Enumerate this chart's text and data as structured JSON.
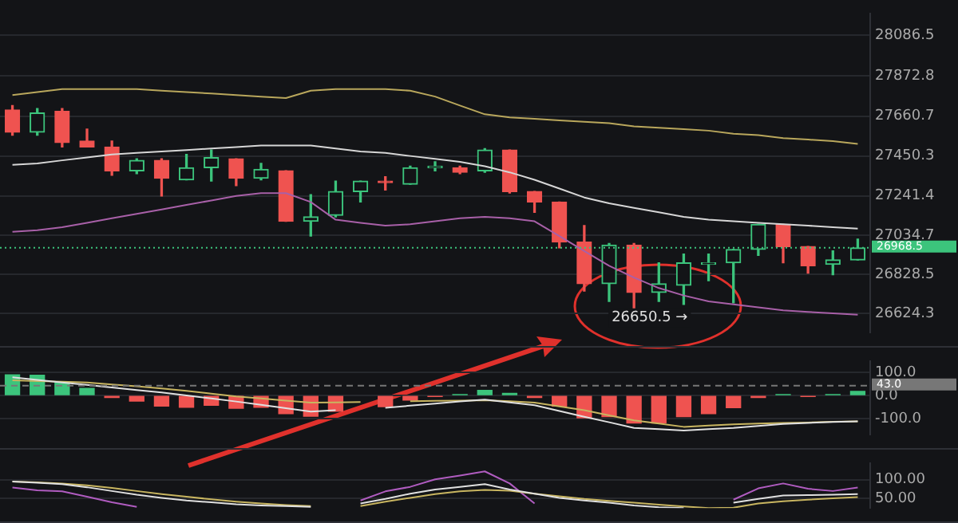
{
  "chart_data": [
    {
      "type": "candlestick",
      "categories": [
        null,
        null,
        null,
        null,
        null,
        null,
        null,
        null,
        null,
        null,
        null,
        null,
        null,
        null,
        null,
        null,
        null,
        null,
        null,
        null,
        null,
        null,
        null,
        null,
        null,
        null,
        null,
        null,
        null,
        null,
        null,
        null,
        null,
        null,
        null
      ],
      "ohlc": [
        [
          27693,
          27716,
          27560,
          27576
        ],
        [
          27576,
          27700,
          27560,
          27677
        ],
        [
          27685,
          27700,
          27498,
          27521
        ],
        [
          27529,
          27592,
          27498,
          27498
        ],
        [
          27498,
          27529,
          27350,
          27373
        ],
        [
          27373,
          27436,
          27358,
          27428
        ],
        [
          27428,
          27436,
          27241,
          27334
        ],
        [
          27326,
          27459,
          27326,
          27389
        ],
        [
          27389,
          27482,
          27319,
          27443
        ],
        [
          27436,
          27436,
          27295,
          27334
        ],
        [
          27334,
          27412,
          27326,
          27381
        ],
        [
          27373,
          27373,
          27108,
          27108
        ],
        [
          27108,
          27248,
          27030,
          27131
        ],
        [
          27139,
          27319,
          27131,
          27264
        ],
        [
          27264,
          27319,
          27209,
          27319
        ],
        [
          27319,
          27342,
          27272,
          27311
        ],
        [
          27303,
          27397,
          27303,
          27389
        ],
        [
          27389,
          27420,
          27373,
          27397
        ],
        [
          27389,
          27397,
          27358,
          27365
        ],
        [
          27373,
          27490,
          27365,
          27482
        ],
        [
          27482,
          27482,
          27256,
          27264
        ],
        [
          27264,
          27264,
          27155,
          27209
        ],
        [
          27209,
          27209,
          26968,
          26999
        ],
        [
          26999,
          27085,
          26741,
          26780
        ],
        [
          26780,
          26991,
          26687,
          26983
        ],
        [
          26983,
          26991,
          26650.5,
          26734
        ],
        [
          26734,
          26890,
          26687,
          26780
        ],
        [
          26772,
          26936,
          26671,
          26890
        ],
        [
          26882,
          26936,
          26796,
          26890
        ],
        [
          26890,
          26960,
          26679,
          26960
        ],
        [
          26960,
          27092,
          26929,
          27092
        ],
        [
          27092,
          27092,
          26890,
          26975
        ],
        [
          26975,
          26975,
          26835,
          26874
        ],
        [
          26882,
          26952,
          26827,
          26905
        ],
        [
          26905,
          27014,
          26905,
          26968.5
        ]
      ],
      "colors": [
        "#ef5350",
        "#3cc47c",
        "#ef5350",
        "#ef5350",
        "#ef5350",
        "#3cc47c",
        "#ef5350",
        "#3cc47c",
        "#3cc47c",
        "#ef5350",
        "#3cc47c",
        "#ef5350",
        "#3cc47c",
        "#3cc47c",
        "#3cc47c",
        "#ef5350",
        "#3cc47c",
        "#3cc47c",
        "#ef5350",
        "#3cc47c",
        "#ef5350",
        "#ef5350",
        "#ef5350",
        "#ef5350",
        "#3cc47c",
        "#ef5350",
        "#3cc47c",
        "#3cc47c",
        "#3cc47c",
        "#3cc47c",
        "#3cc47c",
        "#ef5350",
        "#ef5350",
        "#3cc47c",
        "#3cc47c"
      ],
      "series": [
        {
          "type": "line",
          "color": "#b9a75c",
          "values": [
            27771,
            27787,
            27802,
            27802,
            27802,
            27802,
            27794,
            27787,
            27779,
            27771,
            27763,
            27755,
            27794,
            27802,
            27802,
            27802,
            27794,
            27763,
            27716,
            27670,
            27654,
            27646,
            27638,
            27631,
            27623,
            27607,
            27599,
            27592,
            27584,
            27568,
            27560,
            27545,
            27537,
            27529,
            27514
          ]
        },
        {
          "type": "line",
          "color": "#d6d6d6",
          "values": [
            27404,
            27412,
            27428,
            27443,
            27459,
            27467,
            27475,
            27482,
            27490,
            27498,
            27506,
            27506,
            27506,
            27490,
            27475,
            27467,
            27451,
            27436,
            27420,
            27397,
            27365,
            27326,
            27280,
            27233,
            27202,
            27178,
            27155,
            27131,
            27116,
            27108,
            27100,
            27092,
            27085,
            27077,
            27069
          ]
        },
        {
          "type": "line",
          "color": "#a860a8",
          "values": [
            27053,
            27061,
            27077,
            27100,
            27124,
            27147,
            27170,
            27194,
            27217,
            27241,
            27256,
            27256,
            27209,
            27116,
            27100,
            27085,
            27092,
            27108,
            27124,
            27131,
            27124,
            27108,
            27030,
            26952,
            26874,
            26812,
            26757,
            26718,
            26687,
            26671,
            26656,
            26640,
            26632,
            26624,
            26617
          ]
        }
      ],
      "ylim": [
        26523,
        28200
      ],
      "yticks": [
        26624.3,
        26828.5,
        27034.7,
        27241.4,
        27450.3,
        27660.7,
        27872.8,
        28086.5
      ],
      "ref_lines": [
        {
          "axis": "y",
          "value": 26968.5,
          "label": "26968.5",
          "color": "#3cc47c",
          "line_style": "dotted"
        }
      ],
      "annotations": [
        "26650.5 →"
      ],
      "grid": "y",
      "tick_labels": "y"
    },
    {
      "type": "bar",
      "categories": [
        null,
        null,
        null,
        null,
        null,
        null,
        null,
        null,
        null,
        null,
        null,
        null,
        null,
        null,
        null,
        null,
        null,
        null,
        null,
        null,
        null,
        null,
        null,
        null,
        null,
        null,
        null,
        null,
        null,
        null,
        null,
        null,
        null,
        null,
        null
      ],
      "series": [
        {
          "type": "bar",
          "colors": [
            "#3cc47c",
            "#3cc47c",
            "#3cc47c",
            "#3cc47c",
            "#ef5350",
            "#ef5350",
            "#ef5350",
            "#ef5350",
            "#ef5350",
            "#ef5350",
            "#ef5350",
            "#ef5350",
            "#ef5350",
            "#ef5350",
            "#ef5350",
            "#ef5350",
            "#ef5350",
            "#ef5350",
            "#3cc47c",
            "#3cc47c",
            "#3cc47c",
            "#ef5350",
            "#ef5350",
            "#ef5350",
            "#ef5350",
            "#ef5350",
            "#ef5350",
            "#ef5350",
            "#ef5350",
            "#ef5350",
            "#ef5350",
            "#3cc47c",
            "#ef5350",
            "#3cc47c",
            "#3cc47c"
          ],
          "values": [
            90,
            88,
            57,
            31,
            -9,
            -24,
            -46,
            -51,
            -42,
            -55,
            -51,
            -79,
            -90,
            -68,
            null,
            -48,
            -20,
            -4,
            4,
            22,
            9,
            -9,
            -46,
            -97,
            -92,
            -119,
            -119,
            -92,
            -79,
            -53,
            -9,
            4,
            -4,
            4,
            18
          ]
        },
        {
          "type": "line",
          "color": "#e0e0e0",
          "values": [
            79,
            68,
            57,
            46,
            35,
            24,
            13,
            0,
            -13,
            -26,
            -40,
            -55,
            -70,
            -64,
            null,
            -53,
            -44,
            -35,
            -26,
            -18,
            -30,
            -42,
            -67,
            -92,
            -116,
            -141,
            -146,
            -152,
            -146,
            -141,
            -132,
            -123,
            -119,
            -115,
            -112
          ]
        },
        {
          "type": "line",
          "color": "#c8b560",
          "values": [
            66,
            63,
            60,
            57,
            48,
            40,
            31,
            20,
            8,
            -4,
            -13,
            -22,
            -31,
            -30,
            -28,
            null,
            -25,
            -23,
            -22,
            -20,
            -25,
            -31,
            -47,
            -64,
            -86,
            -108,
            -122,
            -136,
            -130,
            -125,
            -122,
            -119,
            -117,
            -114,
            -112
          ]
        }
      ],
      "ylim": [
        -170,
        150
      ],
      "yticks": [
        {
          "value": -100,
          "label": "-100.0"
        },
        {
          "value": 0,
          "label": "0.0"
        },
        {
          "value": 100,
          "label": "100.0"
        }
      ],
      "ref_lines": [
        {
          "axis": "y",
          "value": 43,
          "label": "43.0",
          "color": "#777777",
          "line_style": "dashed"
        }
      ],
      "grid": "y",
      "tick_labels": "y"
    },
    {
      "type": "line",
      "categories": [
        null,
        null,
        null,
        null,
        null,
        null,
        null,
        null,
        null,
        null,
        null,
        null,
        null,
        null,
        null,
        null,
        null,
        null,
        null,
        null,
        null,
        null,
        null,
        null,
        null,
        null,
        null,
        null,
        null,
        null,
        null,
        null,
        null,
        null,
        null
      ],
      "series": [
        {
          "color": "#e0e0e0",
          "values": [
            95,
            92,
            88,
            80,
            70,
            60,
            52,
            45,
            40,
            35,
            32,
            30,
            28,
            null,
            37,
            49,
            63,
            74,
            81,
            88,
            74,
            63,
            52,
            45,
            39,
            32,
            27,
            25,
            null,
            39,
            49,
            58,
            59,
            60,
            62
          ]
        },
        {
          "color": "#c8b560",
          "values": [
            95,
            93,
            90,
            85,
            78,
            70,
            62,
            55,
            48,
            42,
            37,
            33,
            30,
            null,
            30,
            42,
            52,
            62,
            69,
            73,
            71,
            63,
            56,
            49,
            44,
            39,
            34,
            29,
            25,
            26,
            37,
            43,
            47,
            51,
            54
          ]
        },
        {
          "color": "#b05cc0",
          "values": [
            79,
            72,
            69,
            55,
            40,
            28,
            null,
            null,
            null,
            null,
            null,
            null,
            null,
            null,
            45,
            69,
            81,
            101,
            111,
            122,
            90,
            37,
            null,
            null,
            null,
            null,
            null,
            null,
            null,
            47,
            77,
            90,
            76,
            70,
            79
          ]
        }
      ],
      "ylim": [
        25,
        144
      ],
      "yticks": [
        {
          "value": 50,
          "label": "50.00"
        },
        {
          "value": 100,
          "label": "100.00"
        }
      ],
      "grid": "y",
      "tick_labels": "y"
    }
  ]
}
